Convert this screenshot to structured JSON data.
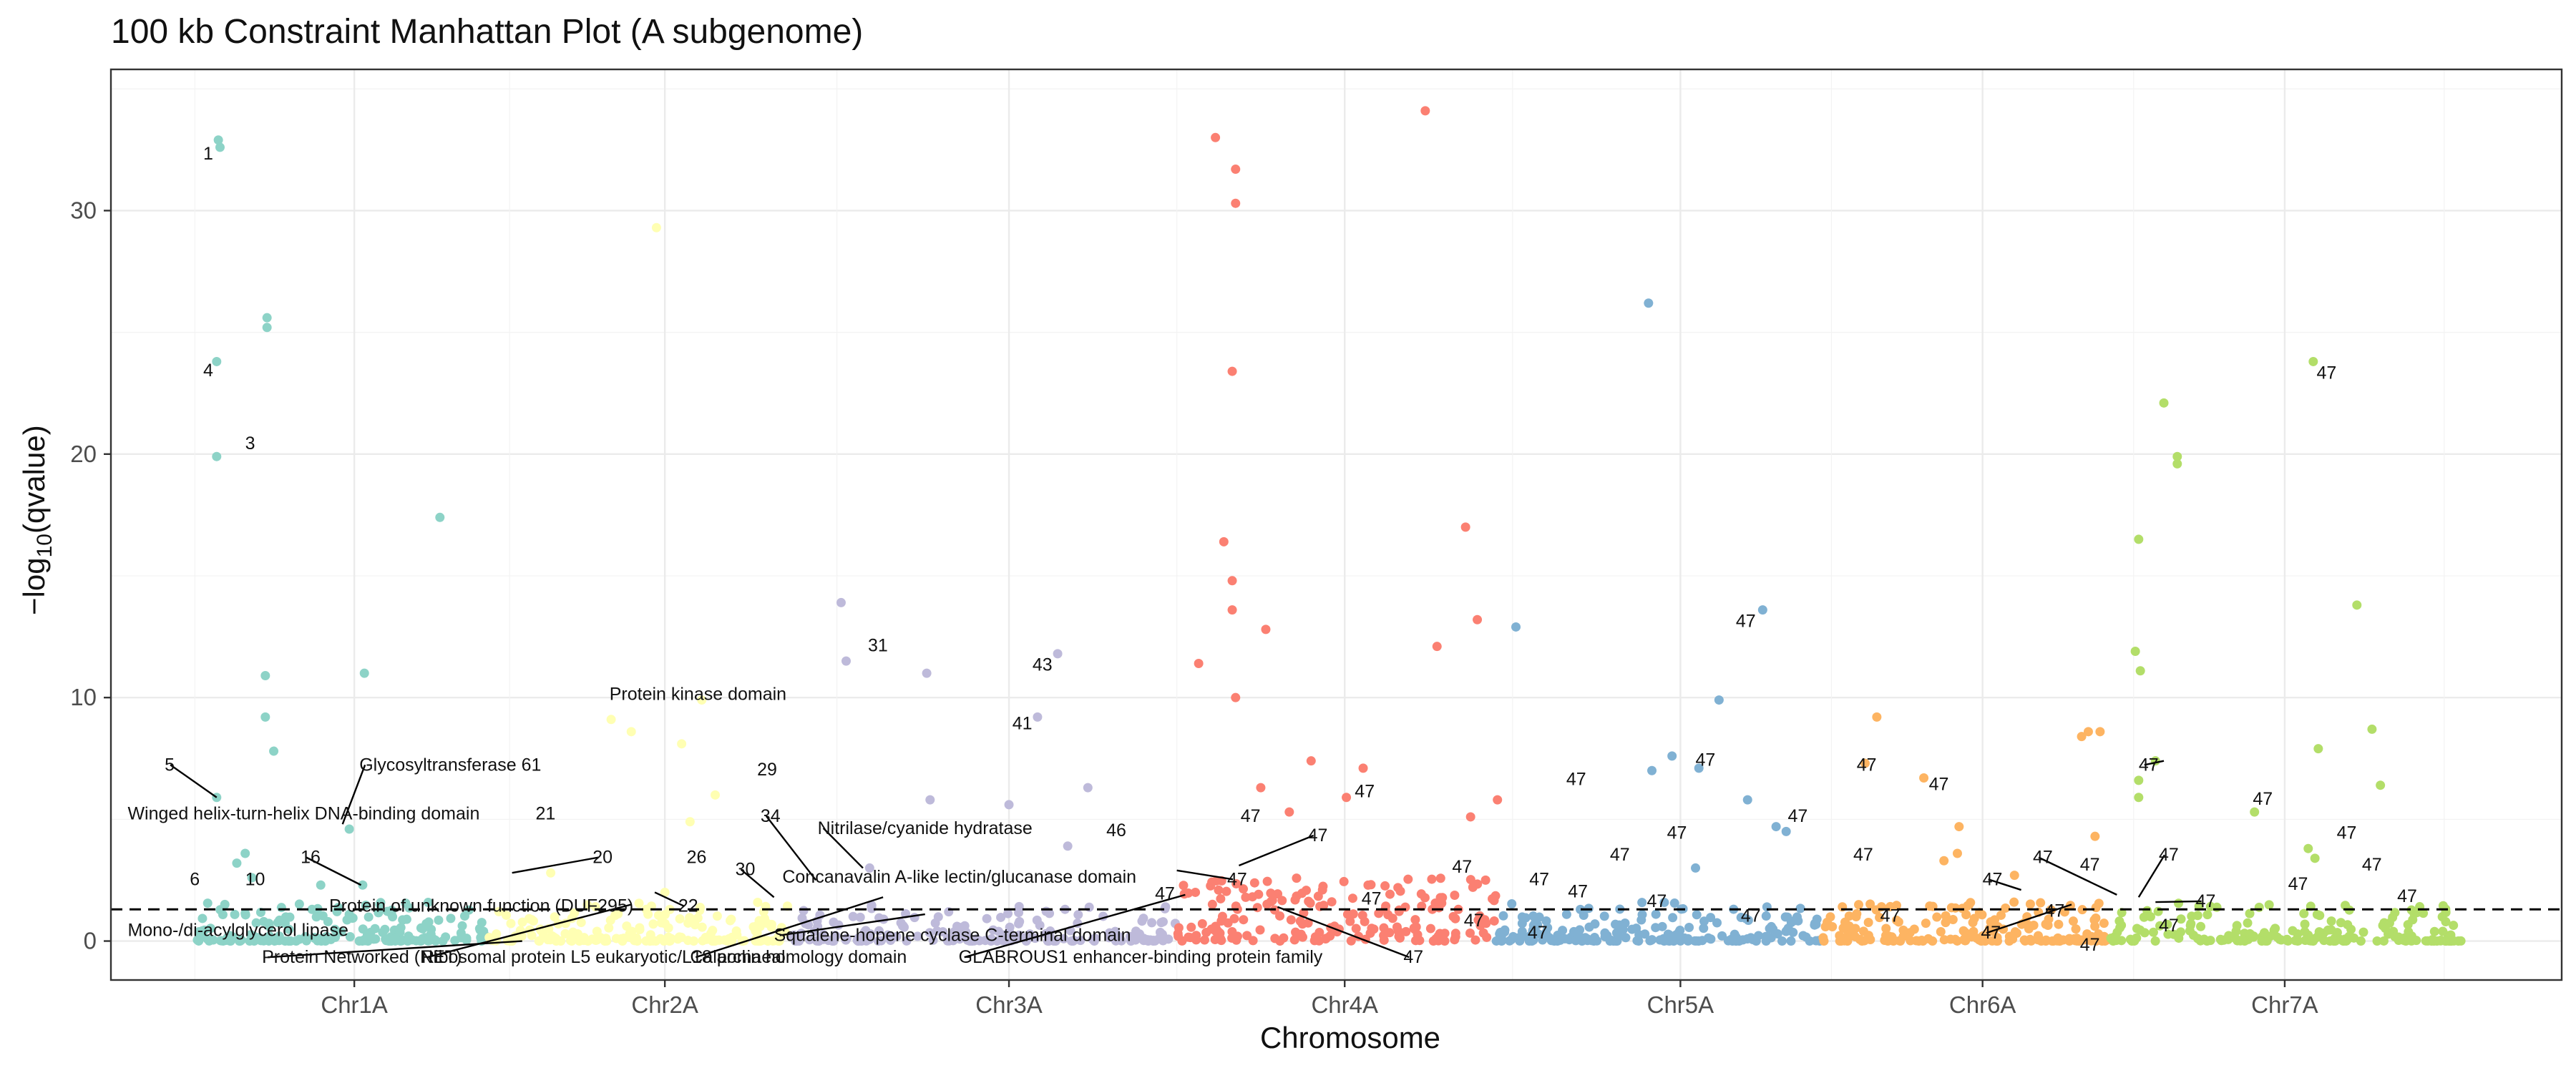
{
  "chart_data": {
    "type": "scatter",
    "title": "100 kb Constraint Manhattan Plot (A subgenome)",
    "xlabel": "Chromosome",
    "ylabel_main": "−log",
    "ylabel_sub": "10",
    "ylabel_tail": "(qvalue)",
    "ylim": [
      -1.6,
      35.8
    ],
    "xlim": [
      0,
      14.6
    ],
    "yticks": [
      0,
      10,
      20,
      30
    ],
    "threshold": 1.3,
    "grid": true,
    "chromosomes": [
      {
        "name": "Chr1A",
        "start": 0.5,
        "end": 2.25,
        "label_x": 1.45,
        "color": "#8DD3C7"
      },
      {
        "name": "Chr2A",
        "start": 2.25,
        "end": 4.05,
        "label_x": 3.3,
        "color": "#FFFFB3"
      },
      {
        "name": "Chr3A",
        "start": 4.05,
        "end": 6.35,
        "label_x": 5.35,
        "color": "#BEBADA"
      },
      {
        "name": "Chr4A",
        "start": 6.35,
        "end": 8.25,
        "label_x": 7.35,
        "color": "#FB8072"
      },
      {
        "name": "Chr5A",
        "start": 8.25,
        "end": 10.2,
        "label_x": 9.35,
        "color": "#80B1D3"
      },
      {
        "name": "Chr6A",
        "start": 10.2,
        "end": 11.9,
        "label_x": 11.15,
        "color": "#FDB462"
      },
      {
        "name": "Chr7A",
        "start": 11.9,
        "end": 14.0,
        "label_x": 12.95,
        "color": "#B3DE69"
      }
    ],
    "points": [
      {
        "x": 0.64,
        "y": 32.9,
        "chr": "Chr1A"
      },
      {
        "x": 0.65,
        "y": 32.6,
        "chr": "Chr1A"
      },
      {
        "x": 0.63,
        "y": 23.8,
        "chr": "Chr1A"
      },
      {
        "x": 0.63,
        "y": 19.9,
        "chr": "Chr1A"
      },
      {
        "x": 0.93,
        "y": 25.6,
        "chr": "Chr1A"
      },
      {
        "x": 0.93,
        "y": 25.2,
        "chr": "Chr1A"
      },
      {
        "x": 1.96,
        "y": 17.4,
        "chr": "Chr1A"
      },
      {
        "x": 0.92,
        "y": 10.9,
        "chr": "Chr1A"
      },
      {
        "x": 1.51,
        "y": 11.0,
        "chr": "Chr1A"
      },
      {
        "x": 0.92,
        "y": 9.2,
        "chr": "Chr1A"
      },
      {
        "x": 0.97,
        "y": 7.8,
        "chr": "Chr1A"
      },
      {
        "x": 0.63,
        "y": 5.9,
        "chr": "Chr1A"
      },
      {
        "x": 0.75,
        "y": 3.2,
        "chr": "Chr1A"
      },
      {
        "x": 0.8,
        "y": 3.6,
        "chr": "Chr1A"
      },
      {
        "x": 0.84,
        "y": 2.6,
        "chr": "Chr1A"
      },
      {
        "x": 1.25,
        "y": 2.3,
        "chr": "Chr1A"
      },
      {
        "x": 1.42,
        "y": 4.6,
        "chr": "Chr1A"
      },
      {
        "x": 1.5,
        "y": 2.3,
        "chr": "Chr1A"
      },
      {
        "x": 3.25,
        "y": 29.3,
        "chr": "Chr2A"
      },
      {
        "x": 2.98,
        "y": 9.1,
        "chr": "Chr2A"
      },
      {
        "x": 3.1,
        "y": 8.6,
        "chr": "Chr2A"
      },
      {
        "x": 3.4,
        "y": 8.1,
        "chr": "Chr2A"
      },
      {
        "x": 3.52,
        "y": 9.9,
        "chr": "Chr2A"
      },
      {
        "x": 3.6,
        "y": 6.0,
        "chr": "Chr2A"
      },
      {
        "x": 3.45,
        "y": 4.9,
        "chr": "Chr2A"
      },
      {
        "x": 2.62,
        "y": 2.8,
        "chr": "Chr2A"
      },
      {
        "x": 3.3,
        "y": 2.0,
        "chr": "Chr2A"
      },
      {
        "x": 4.35,
        "y": 13.9,
        "chr": "Chr3A"
      },
      {
        "x": 4.38,
        "y": 11.5,
        "chr": "Chr3A"
      },
      {
        "x": 4.86,
        "y": 11.0,
        "chr": "Chr3A"
      },
      {
        "x": 5.64,
        "y": 11.8,
        "chr": "Chr3A"
      },
      {
        "x": 5.52,
        "y": 9.2,
        "chr": "Chr3A"
      },
      {
        "x": 5.82,
        "y": 6.3,
        "chr": "Chr3A"
      },
      {
        "x": 5.35,
        "y": 5.6,
        "chr": "Chr3A"
      },
      {
        "x": 4.88,
        "y": 5.8,
        "chr": "Chr3A"
      },
      {
        "x": 4.52,
        "y": 3.0,
        "chr": "Chr3A"
      },
      {
        "x": 5.7,
        "y": 3.9,
        "chr": "Chr3A"
      },
      {
        "x": 6.58,
        "y": 33.0,
        "chr": "Chr4A"
      },
      {
        "x": 6.7,
        "y": 31.7,
        "chr": "Chr4A"
      },
      {
        "x": 6.7,
        "y": 30.3,
        "chr": "Chr4A"
      },
      {
        "x": 7.83,
        "y": 34.1,
        "chr": "Chr4A"
      },
      {
        "x": 6.68,
        "y": 23.4,
        "chr": "Chr4A"
      },
      {
        "x": 6.63,
        "y": 16.4,
        "chr": "Chr4A"
      },
      {
        "x": 6.68,
        "y": 14.8,
        "chr": "Chr4A"
      },
      {
        "x": 6.68,
        "y": 13.6,
        "chr": "Chr4A"
      },
      {
        "x": 6.88,
        "y": 12.8,
        "chr": "Chr4A"
      },
      {
        "x": 6.48,
        "y": 11.4,
        "chr": "Chr4A"
      },
      {
        "x": 6.7,
        "y": 10.0,
        "chr": "Chr4A"
      },
      {
        "x": 8.07,
        "y": 17.0,
        "chr": "Chr4A"
      },
      {
        "x": 8.14,
        "y": 13.2,
        "chr": "Chr4A"
      },
      {
        "x": 7.9,
        "y": 12.1,
        "chr": "Chr4A"
      },
      {
        "x": 7.15,
        "y": 7.4,
        "chr": "Chr4A"
      },
      {
        "x": 7.46,
        "y": 7.1,
        "chr": "Chr4A"
      },
      {
        "x": 7.36,
        "y": 5.9,
        "chr": "Chr4A"
      },
      {
        "x": 8.26,
        "y": 5.8,
        "chr": "Chr4A"
      },
      {
        "x": 7.02,
        "y": 5.3,
        "chr": "Chr4A"
      },
      {
        "x": 8.1,
        "y": 5.1,
        "chr": "Chr4A"
      },
      {
        "x": 6.85,
        "y": 6.3,
        "chr": "Chr4A"
      },
      {
        "x": 9.16,
        "y": 26.2,
        "chr": "Chr5A"
      },
      {
        "x": 9.84,
        "y": 13.6,
        "chr": "Chr5A"
      },
      {
        "x": 8.37,
        "y": 12.9,
        "chr": "Chr5A"
      },
      {
        "x": 9.58,
        "y": 9.9,
        "chr": "Chr5A"
      },
      {
        "x": 9.3,
        "y": 7.6,
        "chr": "Chr5A"
      },
      {
        "x": 9.46,
        "y": 7.1,
        "chr": "Chr5A"
      },
      {
        "x": 9.18,
        "y": 7.0,
        "chr": "Chr5A"
      },
      {
        "x": 9.75,
        "y": 5.8,
        "chr": "Chr5A"
      },
      {
        "x": 9.92,
        "y": 4.7,
        "chr": "Chr5A"
      },
      {
        "x": 9.98,
        "y": 4.5,
        "chr": "Chr5A"
      },
      {
        "x": 9.44,
        "y": 3.0,
        "chr": "Chr5A"
      },
      {
        "x": 10.52,
        "y": 9.2,
        "chr": "Chr6A"
      },
      {
        "x": 10.45,
        "y": 7.3,
        "chr": "Chr6A"
      },
      {
        "x": 10.8,
        "y": 6.7,
        "chr": "Chr6A"
      },
      {
        "x": 11.01,
        "y": 4.7,
        "chr": "Chr6A"
      },
      {
        "x": 10.92,
        "y": 3.3,
        "chr": "Chr6A"
      },
      {
        "x": 11.0,
        "y": 3.6,
        "chr": "Chr6A"
      },
      {
        "x": 11.74,
        "y": 8.4,
        "chr": "Chr6A"
      },
      {
        "x": 11.78,
        "y": 8.6,
        "chr": "Chr6A"
      },
      {
        "x": 11.85,
        "y": 8.6,
        "chr": "Chr6A"
      },
      {
        "x": 11.82,
        "y": 4.3,
        "chr": "Chr6A"
      },
      {
        "x": 11.34,
        "y": 2.7,
        "chr": "Chr6A"
      },
      {
        "x": 13.12,
        "y": 23.8,
        "chr": "Chr7A"
      },
      {
        "x": 12.23,
        "y": 22.1,
        "chr": "Chr7A"
      },
      {
        "x": 12.31,
        "y": 19.9,
        "chr": "Chr7A"
      },
      {
        "x": 12.31,
        "y": 19.6,
        "chr": "Chr7A"
      },
      {
        "x": 12.08,
        "y": 16.5,
        "chr": "Chr7A"
      },
      {
        "x": 12.06,
        "y": 11.9,
        "chr": "Chr7A"
      },
      {
        "x": 12.09,
        "y": 11.1,
        "chr": "Chr7A"
      },
      {
        "x": 13.38,
        "y": 13.8,
        "chr": "Chr7A"
      },
      {
        "x": 13.47,
        "y": 8.7,
        "chr": "Chr7A"
      },
      {
        "x": 13.15,
        "y": 7.9,
        "chr": "Chr7A"
      },
      {
        "x": 12.18,
        "y": 7.4,
        "chr": "Chr7A"
      },
      {
        "x": 12.08,
        "y": 6.6,
        "chr": "Chr7A"
      },
      {
        "x": 12.08,
        "y": 5.9,
        "chr": "Chr7A"
      },
      {
        "x": 13.52,
        "y": 6.4,
        "chr": "Chr7A"
      },
      {
        "x": 12.77,
        "y": 5.3,
        "chr": "Chr7A"
      },
      {
        "x": 13.09,
        "y": 3.8,
        "chr": "Chr7A"
      },
      {
        "x": 13.13,
        "y": 3.4,
        "chr": "Chr7A"
      }
    ],
    "annotations": [
      {
        "text": "1",
        "x": 0.55,
        "y": 32.1,
        "lx": null,
        "ly": null
      },
      {
        "text": "4",
        "x": 0.55,
        "y": 23.2,
        "lx": null,
        "ly": null
      },
      {
        "text": "3",
        "x": 0.8,
        "y": 20.2,
        "lx": null,
        "ly": null
      },
      {
        "text": "5",
        "x": 0.32,
        "y": 7.0,
        "lx": 0.63,
        "ly": 5.9
      },
      {
        "text": "Winged helix-turn-helix DNA-binding domain",
        "x": 0.1,
        "y": 5.0,
        "lx": null,
        "ly": null
      },
      {
        "text": "Glycosyltransferase 61",
        "x": 1.48,
        "y": 7.0,
        "lx": 1.38,
        "ly": 4.8
      },
      {
        "text": "21",
        "x": 2.53,
        "y": 5.0,
        "lx": null,
        "ly": null
      },
      {
        "text": "6",
        "x": 0.47,
        "y": 2.3,
        "lx": null,
        "ly": null
      },
      {
        "text": "10",
        "x": 0.8,
        "y": 2.3,
        "lx": null,
        "ly": null
      },
      {
        "text": "16",
        "x": 1.13,
        "y": 3.2,
        "lx": 1.49,
        "ly": 2.3
      },
      {
        "text": "20",
        "x": 2.87,
        "y": 3.2,
        "lx": 2.39,
        "ly": 2.8
      },
      {
        "text": "Protein of unknown function (DUF295)",
        "x": 1.3,
        "y": 1.2,
        "lx": null,
        "ly": null
      },
      {
        "text": "22",
        "x": 3.38,
        "y": 1.2,
        "lx": 3.24,
        "ly": 2.0
      },
      {
        "text": "26",
        "x": 3.43,
        "y": 3.2,
        "lx": null,
        "ly": null
      },
      {
        "text": "30",
        "x": 3.72,
        "y": 2.7,
        "lx": 3.95,
        "ly": 1.8
      },
      {
        "text": "Mono-/di-acylglycerol lipase",
        "x": 0.1,
        "y": 0.2,
        "lx": null,
        "ly": null
      },
      {
        "text": "Protein Networked (NET)",
        "x": 0.9,
        "y": -0.9,
        "lx": 2.45,
        "ly": 0.0
      },
      {
        "text": "Ribosomal protein L5 eukaryotic/L18 archaeal",
        "x": 1.85,
        "y": -0.9,
        "lx": 3.1,
        "ly": 1.5
      },
      {
        "text": "Protein kinase domain",
        "x": 2.97,
        "y": 9.9,
        "lx": null,
        "ly": null
      },
      {
        "text": "29",
        "x": 3.85,
        "y": 6.8,
        "lx": null,
        "ly": null
      },
      {
        "text": "34",
        "x": 3.87,
        "y": 4.9,
        "lx": 4.2,
        "ly": 2.5
      },
      {
        "text": "31",
        "x": 4.51,
        "y": 11.9,
        "lx": null,
        "ly": null
      },
      {
        "text": "43",
        "x": 5.49,
        "y": 11.1,
        "lx": null,
        "ly": null
      },
      {
        "text": "41",
        "x": 5.37,
        "y": 8.7,
        "lx": null,
        "ly": null
      },
      {
        "text": "Nitrilase/cyanide hydratase",
        "x": 4.21,
        "y": 4.4,
        "lx": 4.48,
        "ly": 3.0
      },
      {
        "text": "Concanavalin A-like lectin/glucanase domain",
        "x": 4.0,
        "y": 2.4,
        "lx": null,
        "ly": null
      },
      {
        "text": "Squalene-hopene cyclase C-terminal domain",
        "x": 3.95,
        "y": 0.0,
        "lx": 4.85,
        "ly": 1.1
      },
      {
        "text": "Calponin homology domain",
        "x": 3.45,
        "y": -0.9,
        "lx": 4.6,
        "ly": 1.8
      },
      {
        "text": "GLABROUS1 enhancer-binding protein family",
        "x": 5.05,
        "y": -0.9,
        "lx": 6.4,
        "ly": 1.9
      },
      {
        "text": "46",
        "x": 5.93,
        "y": 4.3,
        "lx": null,
        "ly": null
      },
      {
        "text": "47",
        "x": 6.73,
        "y": 4.9,
        "lx": null,
        "ly": null
      },
      {
        "text": "47",
        "x": 7.13,
        "y": 4.1,
        "lx": 6.72,
        "ly": 3.1
      },
      {
        "text": "47",
        "x": 7.41,
        "y": 5.9,
        "lx": null,
        "ly": null
      },
      {
        "text": "47",
        "x": 6.65,
        "y": 2.3,
        "lx": 6.35,
        "ly": 2.9
      },
      {
        "text": "47",
        "x": 6.22,
        "y": 1.7,
        "lx": null,
        "ly": null
      },
      {
        "text": "47",
        "x": 7.7,
        "y": -0.9,
        "lx": 6.95,
        "ly": 1.4
      },
      {
        "text": "47",
        "x": 7.45,
        "y": 1.5,
        "lx": null,
        "ly": null
      },
      {
        "text": "47",
        "x": 7.99,
        "y": 2.8,
        "lx": null,
        "ly": null
      },
      {
        "text": "47",
        "x": 8.06,
        "y": 0.6,
        "lx": null,
        "ly": null
      },
      {
        "text": "47",
        "x": 8.45,
        "y": 2.3,
        "lx": null,
        "ly": null
      },
      {
        "text": "47",
        "x": 8.44,
        "y": 0.1,
        "lx": null,
        "ly": null
      },
      {
        "text": "47",
        "x": 8.67,
        "y": 6.4,
        "lx": null,
        "ly": null
      },
      {
        "text": "47",
        "x": 8.68,
        "y": 1.8,
        "lx": null,
        "ly": null
      },
      {
        "text": "47",
        "x": 8.93,
        "y": 3.3,
        "lx": null,
        "ly": null
      },
      {
        "text": "47",
        "x": 9.15,
        "y": 1.4,
        "lx": null,
        "ly": null
      },
      {
        "text": "47",
        "x": 9.27,
        "y": 4.2,
        "lx": null,
        "ly": null
      },
      {
        "text": "47",
        "x": 9.44,
        "y": 7.2,
        "lx": null,
        "ly": null
      },
      {
        "text": "47",
        "x": 9.68,
        "y": 12.9,
        "lx": null,
        "ly": null
      },
      {
        "text": "47",
        "x": 9.71,
        "y": 0.8,
        "lx": null,
        "ly": null
      },
      {
        "text": "47",
        "x": 9.99,
        "y": 4.9,
        "lx": null,
        "ly": null
      },
      {
        "text": "47",
        "x": 10.4,
        "y": 7.0,
        "lx": null,
        "ly": null
      },
      {
        "text": "47",
        "x": 10.38,
        "y": 3.3,
        "lx": null,
        "ly": null
      },
      {
        "text": "47",
        "x": 10.54,
        "y": 0.8,
        "lx": null,
        "ly": null
      },
      {
        "text": "47",
        "x": 10.83,
        "y": 6.2,
        "lx": null,
        "ly": null
      },
      {
        "text": "47",
        "x": 11.15,
        "y": 2.3,
        "lx": 11.38,
        "ly": 2.1
      },
      {
        "text": "47",
        "x": 11.14,
        "y": 0.1,
        "lx": 11.68,
        "ly": 1.5
      },
      {
        "text": "47",
        "x": 11.52,
        "y": 1.0,
        "lx": null,
        "ly": null
      },
      {
        "text": "47",
        "x": 11.45,
        "y": 3.2,
        "lx": 11.95,
        "ly": 1.9
      },
      {
        "text": "47",
        "x": 11.73,
        "y": 2.9,
        "lx": null,
        "ly": null
      },
      {
        "text": "47",
        "x": 11.73,
        "y": -0.4,
        "lx": null,
        "ly": null
      },
      {
        "text": "47",
        "x": 12.08,
        "y": 7.0,
        "lx": 12.23,
        "ly": 7.4
      },
      {
        "text": "47",
        "x": 12.2,
        "y": 3.3,
        "lx": 12.08,
        "ly": 1.8
      },
      {
        "text": "47",
        "x": 12.2,
        "y": 0.4,
        "lx": null,
        "ly": null
      },
      {
        "text": "47",
        "x": 12.42,
        "y": 1.4,
        "lx": 12.18,
        "ly": 1.6
      },
      {
        "text": "47",
        "x": 12.76,
        "y": 5.6,
        "lx": null,
        "ly": null
      },
      {
        "text": "47",
        "x": 12.97,
        "y": 2.1,
        "lx": null,
        "ly": null
      },
      {
        "text": "47",
        "x": 13.26,
        "y": 4.2,
        "lx": null,
        "ly": null
      },
      {
        "text": "47",
        "x": 13.41,
        "y": 2.9,
        "lx": null,
        "ly": null
      },
      {
        "text": "47",
        "x": 13.62,
        "y": 1.6,
        "lx": null,
        "ly": null
      },
      {
        "text": "47",
        "x": 13.14,
        "y": 23.1,
        "lx": null,
        "ly": null
      }
    ]
  }
}
